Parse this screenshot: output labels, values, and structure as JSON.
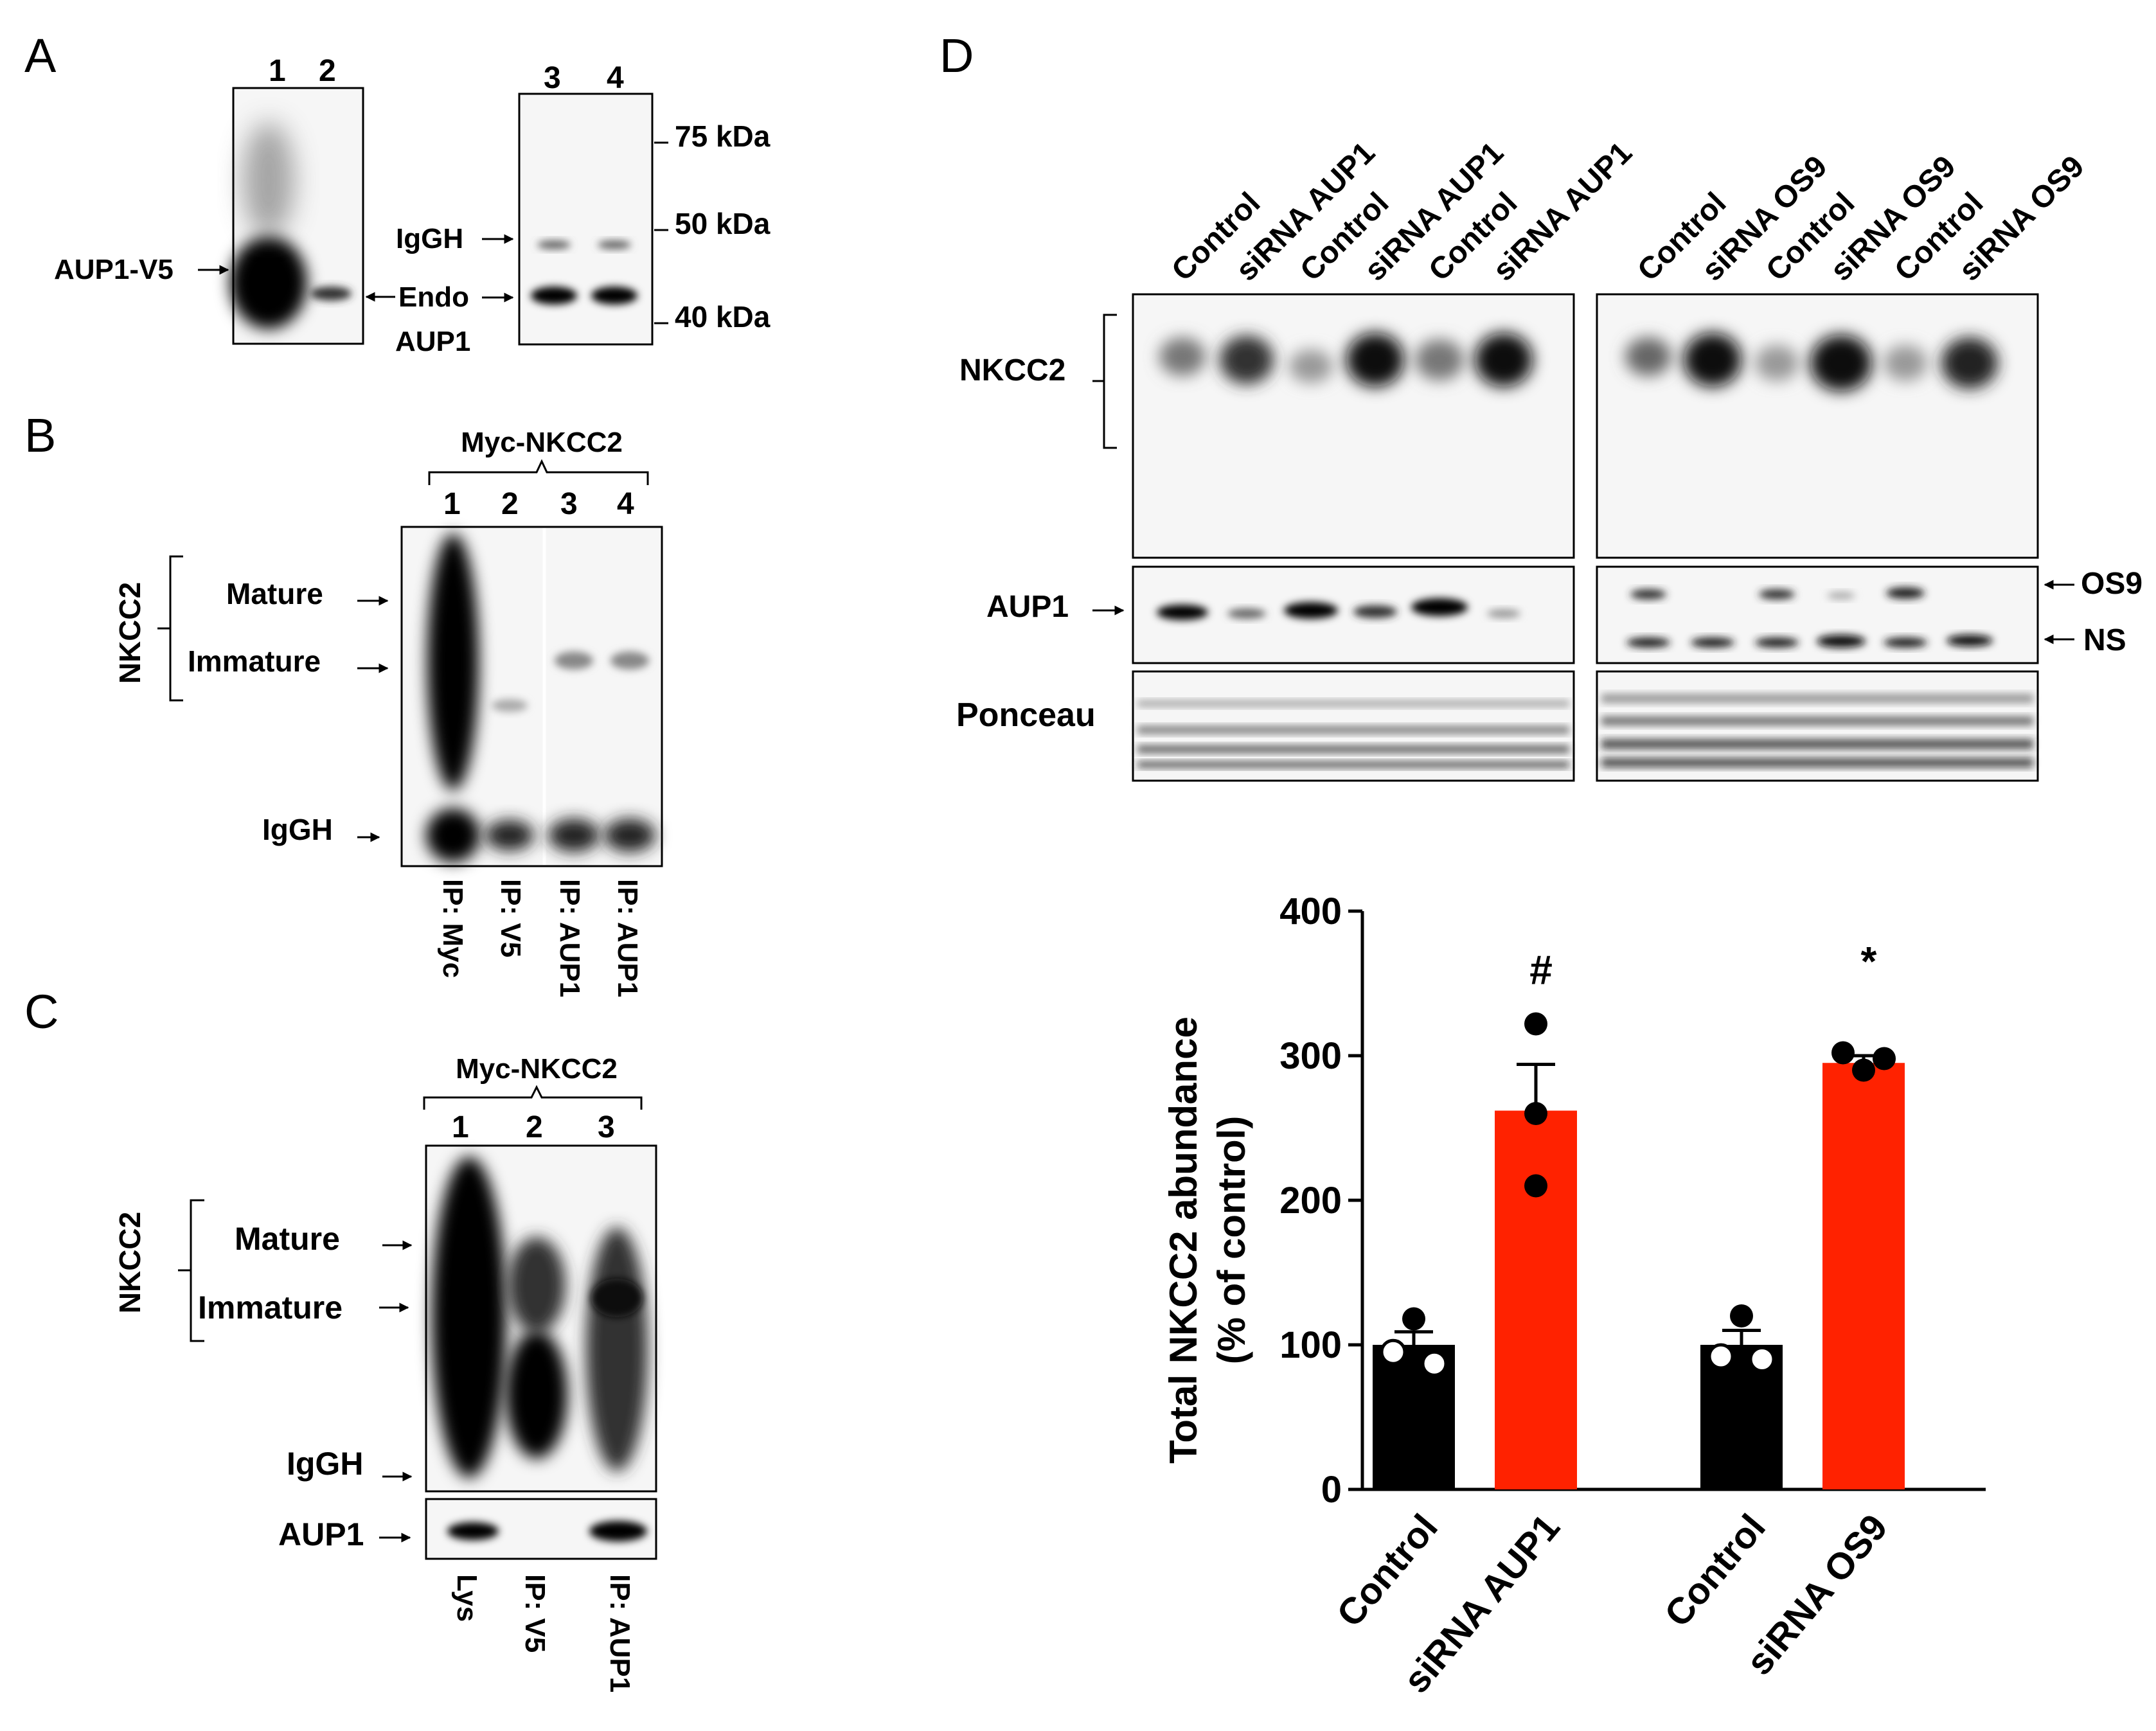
{
  "panels": {
    "A": {
      "letter": "A",
      "lanes_left": [
        "1",
        "2"
      ],
      "lanes_right": [
        "3",
        "4"
      ],
      "label_aup1_v5": "AUP1-V5",
      "label_endo": "Endo",
      "label_aup1": "AUP1",
      "label_igGH": "IgGH",
      "markers": [
        "75 kDa",
        "50 kDa",
        "40 kDa"
      ]
    },
    "B": {
      "letter": "B",
      "group": "Myc-NKCC2",
      "lanes": [
        "1",
        "2",
        "3",
        "4"
      ],
      "side_label": "NKCC2",
      "bands": [
        "Mature",
        "Immature",
        "IgGH"
      ],
      "ip_labels": [
        "IP: Myc",
        "IP: V5",
        "IP: AUP1",
        "IP: AUP1"
      ]
    },
    "C": {
      "letter": "C",
      "group": "Myc-NKCC2",
      "lanes": [
        "1",
        "2",
        "3"
      ],
      "side_label": "NKCC2",
      "bands": [
        "Mature",
        "Immature",
        "IgGH"
      ],
      "aup1_label": "AUP1",
      "ip_labels": [
        "Lys",
        "IP: V5",
        "IP: AUP1"
      ]
    },
    "D": {
      "letter": "D",
      "lanes_left": [
        "Control",
        "siRNA AUP1",
        "Control",
        "siRNA AUP1",
        "Control",
        "siRNA AUP1"
      ],
      "lanes_right": [
        "Control",
        "siRNA OS9",
        "Control",
        "siRNA OS9",
        "Control",
        "siRNA OS9"
      ],
      "row_labels": [
        "NKCC2",
        "AUP1",
        "Ponceau"
      ],
      "right_labels": [
        "OS9",
        "NS"
      ]
    }
  },
  "chart_data": {
    "type": "bar",
    "categories": [
      "Control",
      "siRNA AUP1",
      "Control",
      "siRNA OS9"
    ],
    "values": [
      100,
      262,
      100,
      295
    ],
    "errors": [
      9,
      32,
      10,
      5
    ],
    "points": [
      [
        118,
        95,
        87
      ],
      [
        322,
        260,
        210
      ],
      [
        120,
        92,
        90
      ],
      [
        302,
        290,
        298
      ]
    ],
    "bar_colors": [
      "#000000",
      "#ff2200",
      "#000000",
      "#ff2200"
    ],
    "significance": [
      "",
      "#",
      "",
      "*"
    ],
    "ylabel": "Total NKCC2 abundance",
    "ylabel2": "(% of control)",
    "ylim": [
      0,
      400
    ],
    "yticks": [
      0,
      100,
      200,
      300,
      400
    ]
  }
}
